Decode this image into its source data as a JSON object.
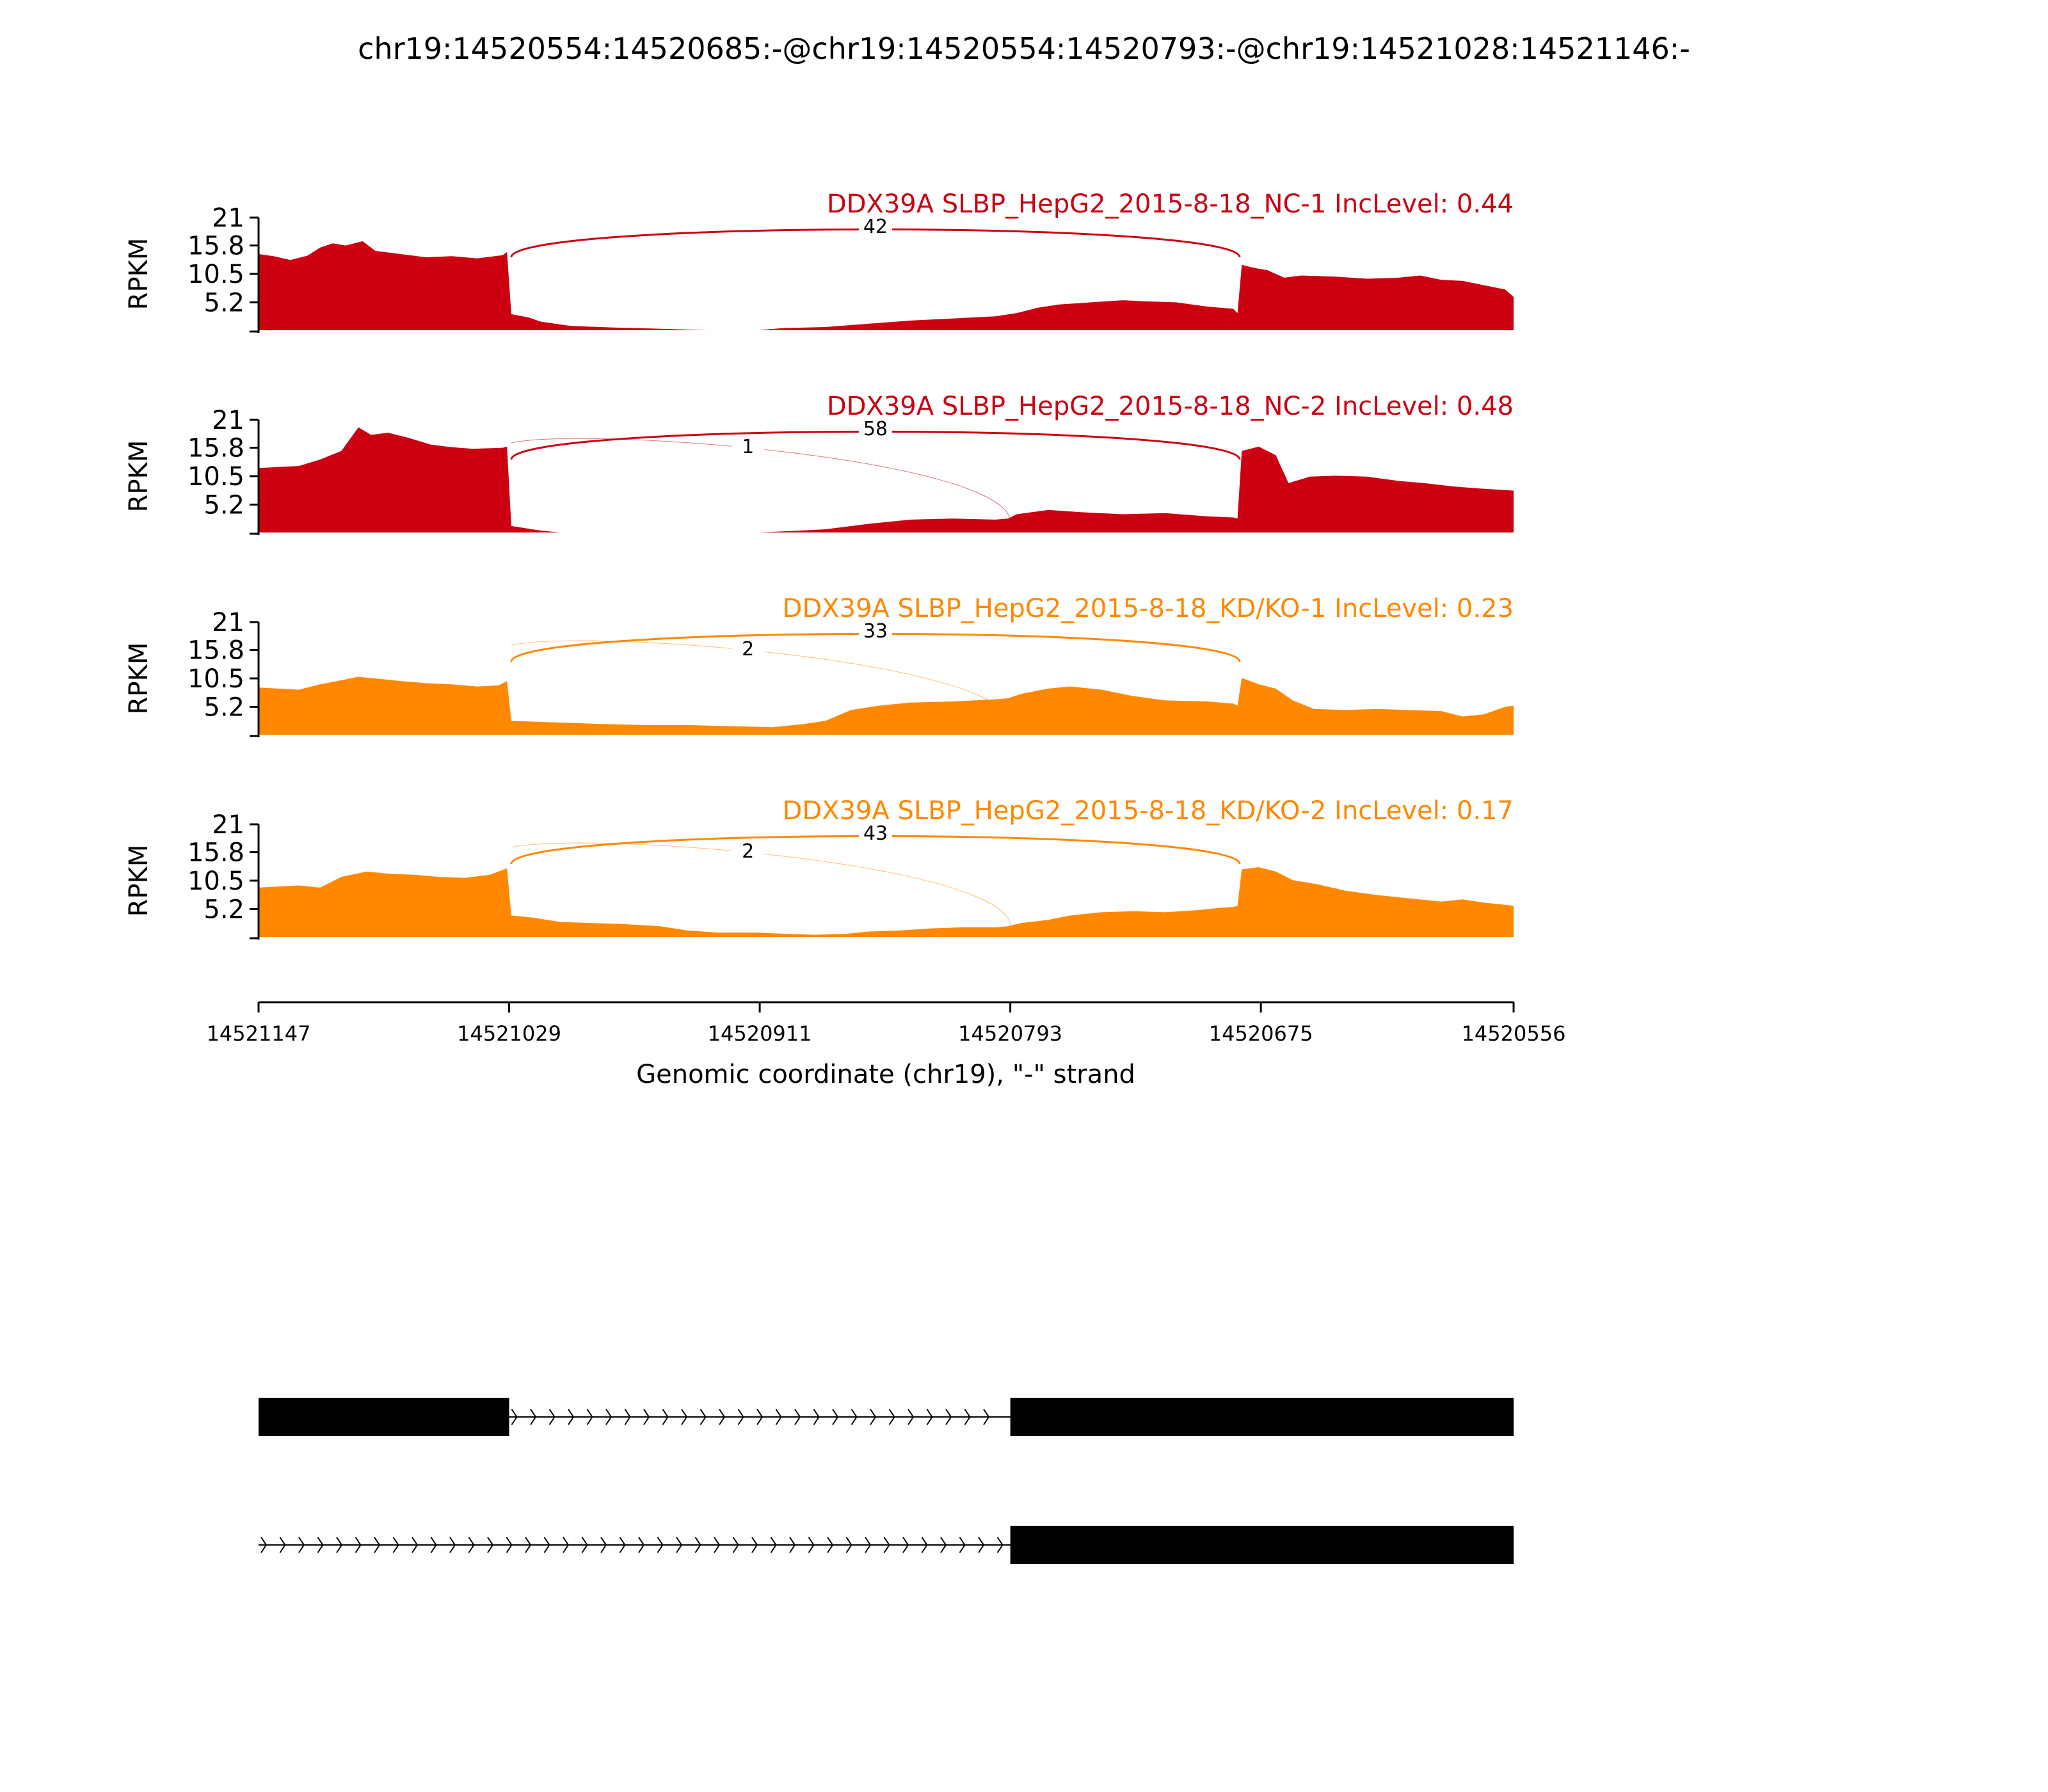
{
  "title": "chr19:14520554:14520685:-@chr19:14520554:14520793:-@chr19:14521028:14521146:-",
  "chart_data": {
    "type": "area",
    "subtype": "sashimi",
    "ylabel": "RPKM",
    "yticks": [
      {
        "value": 21,
        "label": "21"
      },
      {
        "value": 15.8,
        "label": "15.8"
      },
      {
        "value": 10.5,
        "label": "10.5"
      },
      {
        "value": 5.2,
        "label": "5.2"
      }
    ],
    "ylim": [
      0,
      21
    ],
    "xlabel": "Genomic coordinate (chr19), \"-\" strand",
    "xlim": [
      14521147,
      14520556
    ],
    "xticks": [
      {
        "value": 14521147,
        "label": "14521147"
      },
      {
        "value": 14521029,
        "label": "14521029"
      },
      {
        "value": 14520911,
        "label": "14520911"
      },
      {
        "value": 14520793,
        "label": "14520793"
      },
      {
        "value": 14520675,
        "label": "14520675"
      },
      {
        "value": 14520556,
        "label": "14520556"
      }
    ],
    "grid": false,
    "colors": {
      "NC": "#CC0011",
      "KD": "#FF8800",
      "gene_model": "#000000"
    },
    "tracks": [
      {
        "name": "DDX39A SLBP_HepG2_2015-8-18_NC-1 IncLevel: 0.44",
        "color": "#CC0011",
        "coverage": [
          [
            14521147,
            14.2
          ],
          [
            14521140,
            13.8
          ],
          [
            14521132,
            13.1
          ],
          [
            14521124,
            13.9
          ],
          [
            14521118,
            15.4
          ],
          [
            14521112,
            16.2
          ],
          [
            14521106,
            15.8
          ],
          [
            14521098,
            16.6
          ],
          [
            14521092,
            14.8
          ],
          [
            14521080,
            14.2
          ],
          [
            14521068,
            13.6
          ],
          [
            14521056,
            13.8
          ],
          [
            14521044,
            13.4
          ],
          [
            14521032,
            14.0
          ],
          [
            14521030,
            14.6
          ],
          [
            14521028,
            3.0
          ],
          [
            14521020,
            2.4
          ],
          [
            14521014,
            1.6
          ],
          [
            14521000,
            0.8
          ],
          [
            14520980,
            0.5
          ],
          [
            14520960,
            0.3
          ],
          [
            14520935,
            0.0
          ],
          [
            14520912,
            0.0
          ],
          [
            14520900,
            0.4
          ],
          [
            14520880,
            0.6
          ],
          [
            14520860,
            1.2
          ],
          [
            14520840,
            1.8
          ],
          [
            14520820,
            2.2
          ],
          [
            14520800,
            2.6
          ],
          [
            14520790,
            3.2
          ],
          [
            14520780,
            4.2
          ],
          [
            14520770,
            4.8
          ],
          [
            14520755,
            5.2
          ],
          [
            14520740,
            5.6
          ],
          [
            14520730,
            5.4
          ],
          [
            14520715,
            5.2
          ],
          [
            14520700,
            4.4
          ],
          [
            14520688,
            4.0
          ],
          [
            14520686,
            3.2
          ],
          [
            14520684,
            12.2
          ],
          [
            14520678,
            11.6
          ],
          [
            14520672,
            11.2
          ],
          [
            14520664,
            9.8
          ],
          [
            14520656,
            10.2
          ],
          [
            14520640,
            10.0
          ],
          [
            14520625,
            9.6
          ],
          [
            14520610,
            9.8
          ],
          [
            14520600,
            10.2
          ],
          [
            14520590,
            9.4
          ],
          [
            14520580,
            9.2
          ],
          [
            14520570,
            8.4
          ],
          [
            14520560,
            7.6
          ],
          [
            14520556,
            6.2
          ]
        ],
        "junctions": [
          {
            "count": 42,
            "label": "42",
            "start": 14521028,
            "end": 14520685,
            "side": "above"
          }
        ]
      },
      {
        "name": "DDX39A SLBP_HepG2_2015-8-18_NC-2 IncLevel: 0.48",
        "color": "#CC0011",
        "coverage": [
          [
            14521147,
            12.0
          ],
          [
            14521138,
            12.2
          ],
          [
            14521128,
            12.4
          ],
          [
            14521118,
            13.6
          ],
          [
            14521108,
            15.2
          ],
          [
            14521100,
            19.6
          ],
          [
            14521094,
            18.2
          ],
          [
            14521086,
            18.6
          ],
          [
            14521076,
            17.6
          ],
          [
            14521066,
            16.4
          ],
          [
            14521056,
            15.9
          ],
          [
            14521046,
            15.6
          ],
          [
            14521032,
            15.8
          ],
          [
            14521030,
            16.0
          ],
          [
            14521028,
            1.2
          ],
          [
            14521015,
            0.4
          ],
          [
            14521005,
            0.0
          ],
          [
            14520980,
            0.0
          ],
          [
            14520950,
            0.0
          ],
          [
            14520912,
            0.0
          ],
          [
            14520895,
            0.3
          ],
          [
            14520880,
            0.6
          ],
          [
            14520860,
            1.6
          ],
          [
            14520840,
            2.4
          ],
          [
            14520820,
            2.6
          ],
          [
            14520800,
            2.4
          ],
          [
            14520794,
            2.6
          ],
          [
            14520790,
            3.4
          ],
          [
            14520775,
            4.2
          ],
          [
            14520760,
            3.8
          ],
          [
            14520740,
            3.4
          ],
          [
            14520720,
            3.6
          ],
          [
            14520700,
            3.0
          ],
          [
            14520688,
            2.8
          ],
          [
            14520686,
            2.6
          ],
          [
            14520684,
            15.2
          ],
          [
            14520676,
            16.0
          ],
          [
            14520668,
            14.4
          ],
          [
            14520662,
            9.2
          ],
          [
            14520652,
            10.4
          ],
          [
            14520640,
            10.6
          ],
          [
            14520625,
            10.4
          ],
          [
            14520610,
            9.6
          ],
          [
            14520598,
            9.2
          ],
          [
            14520585,
            8.6
          ],
          [
            14520572,
            8.2
          ],
          [
            14520556,
            7.8
          ]
        ],
        "junctions": [
          {
            "count": 58,
            "label": "58",
            "start": 14521028,
            "end": 14520685,
            "side": "above"
          },
          {
            "count": 1,
            "label": "1",
            "start": 14521028,
            "end": 14520793,
            "side": "below"
          }
        ]
      },
      {
        "name": "DDX39A SLBP_HepG2_2015-8-18_KD/KO-1 IncLevel: 0.23",
        "color": "#FF8800",
        "coverage": [
          [
            14521147,
            8.8
          ],
          [
            14521138,
            8.6
          ],
          [
            14521128,
            8.4
          ],
          [
            14521118,
            9.4
          ],
          [
            14521110,
            10.0
          ],
          [
            14521100,
            10.8
          ],
          [
            14521090,
            10.4
          ],
          [
            14521080,
            10.0
          ],
          [
            14521068,
            9.6
          ],
          [
            14521056,
            9.4
          ],
          [
            14521044,
            9.0
          ],
          [
            14521034,
            9.2
          ],
          [
            14521030,
            10.0
          ],
          [
            14521028,
            2.6
          ],
          [
            14521015,
            2.4
          ],
          [
            14521000,
            2.2
          ],
          [
            14520985,
            2.0
          ],
          [
            14520965,
            1.8
          ],
          [
            14520945,
            1.8
          ],
          [
            14520925,
            1.6
          ],
          [
            14520905,
            1.4
          ],
          [
            14520890,
            2.0
          ],
          [
            14520880,
            2.6
          ],
          [
            14520868,
            4.6
          ],
          [
            14520855,
            5.4
          ],
          [
            14520840,
            6.0
          ],
          [
            14520820,
            6.2
          ],
          [
            14520800,
            6.6
          ],
          [
            14520794,
            6.8
          ],
          [
            14520788,
            7.6
          ],
          [
            14520775,
            8.6
          ],
          [
            14520765,
            9.0
          ],
          [
            14520750,
            8.4
          ],
          [
            14520735,
            7.2
          ],
          [
            14520720,
            6.4
          ],
          [
            14520700,
            6.2
          ],
          [
            14520688,
            5.8
          ],
          [
            14520686,
            5.4
          ],
          [
            14520684,
            10.6
          ],
          [
            14520676,
            9.4
          ],
          [
            14520668,
            8.6
          ],
          [
            14520660,
            6.4
          ],
          [
            14520650,
            4.8
          ],
          [
            14520635,
            4.6
          ],
          [
            14520620,
            4.8
          ],
          [
            14520605,
            4.6
          ],
          [
            14520590,
            4.4
          ],
          [
            14520580,
            3.4
          ],
          [
            14520570,
            3.8
          ],
          [
            14520560,
            5.2
          ],
          [
            14520556,
            5.4
          ]
        ],
        "junctions": [
          {
            "count": 33,
            "label": "33",
            "start": 14521028,
            "end": 14520685,
            "side": "above"
          },
          {
            "count": 2,
            "label": "2",
            "start": 14521028,
            "end": 14520793,
            "side": "below"
          }
        ]
      },
      {
        "name": "DDX39A SLBP_HepG2_2015-8-18_KD/KO-2 IncLevel: 0.17",
        "color": "#FF8800",
        "coverage": [
          [
            14521147,
            9.2
          ],
          [
            14521138,
            9.4
          ],
          [
            14521128,
            9.6
          ],
          [
            14521118,
            9.2
          ],
          [
            14521108,
            11.2
          ],
          [
            14521096,
            12.2
          ],
          [
            14521086,
            11.8
          ],
          [
            14521074,
            11.6
          ],
          [
            14521062,
            11.2
          ],
          [
            14521050,
            11.0
          ],
          [
            14521038,
            11.6
          ],
          [
            14521030,
            12.8
          ],
          [
            14521028,
            4.0
          ],
          [
            14521018,
            3.6
          ],
          [
            14521005,
            2.8
          ],
          [
            14520990,
            2.6
          ],
          [
            14520975,
            2.4
          ],
          [
            14520958,
            2.0
          ],
          [
            14520945,
            1.2
          ],
          [
            14520930,
            0.8
          ],
          [
            14520912,
            0.8
          ],
          [
            14520900,
            0.6
          ],
          [
            14520885,
            0.4
          ],
          [
            14520870,
            0.6
          ],
          [
            14520860,
            1.0
          ],
          [
            14520845,
            1.2
          ],
          [
            14520830,
            1.6
          ],
          [
            14520815,
            1.8
          ],
          [
            14520800,
            1.8
          ],
          [
            14520794,
            2.0
          ],
          [
            14520788,
            2.6
          ],
          [
            14520775,
            3.2
          ],
          [
            14520765,
            4.0
          ],
          [
            14520750,
            4.6
          ],
          [
            14520735,
            4.8
          ],
          [
            14520720,
            4.6
          ],
          [
            14520705,
            5.0
          ],
          [
            14520695,
            5.4
          ],
          [
            14520688,
            5.6
          ],
          [
            14520686,
            5.8
          ],
          [
            14520684,
            12.6
          ],
          [
            14520676,
            13.0
          ],
          [
            14520668,
            12.2
          ],
          [
            14520660,
            10.6
          ],
          [
            14520648,
            9.8
          ],
          [
            14520635,
            8.6
          ],
          [
            14520620,
            7.8
          ],
          [
            14520605,
            7.2
          ],
          [
            14520590,
            6.6
          ],
          [
            14520580,
            7.0
          ],
          [
            14520570,
            6.4
          ],
          [
            14520560,
            6.0
          ],
          [
            14520556,
            5.8
          ]
        ],
        "junctions": [
          {
            "count": 43,
            "label": "43",
            "start": 14521028,
            "end": 14520685,
            "side": "above"
          },
          {
            "count": 2,
            "label": "2",
            "start": 14521028,
            "end": 14520793,
            "side": "below"
          }
        ]
      }
    ],
    "gene_models": [
      {
        "exons": [
          [
            14521147,
            14521029
          ],
          [
            14520793,
            14520556
          ]
        ],
        "introns": [
          [
            14521029,
            14520793
          ]
        ]
      },
      {
        "exons": [
          [
            14520793,
            14520556
          ]
        ],
        "introns": [
          [
            14521147,
            14520793
          ]
        ]
      }
    ]
  }
}
